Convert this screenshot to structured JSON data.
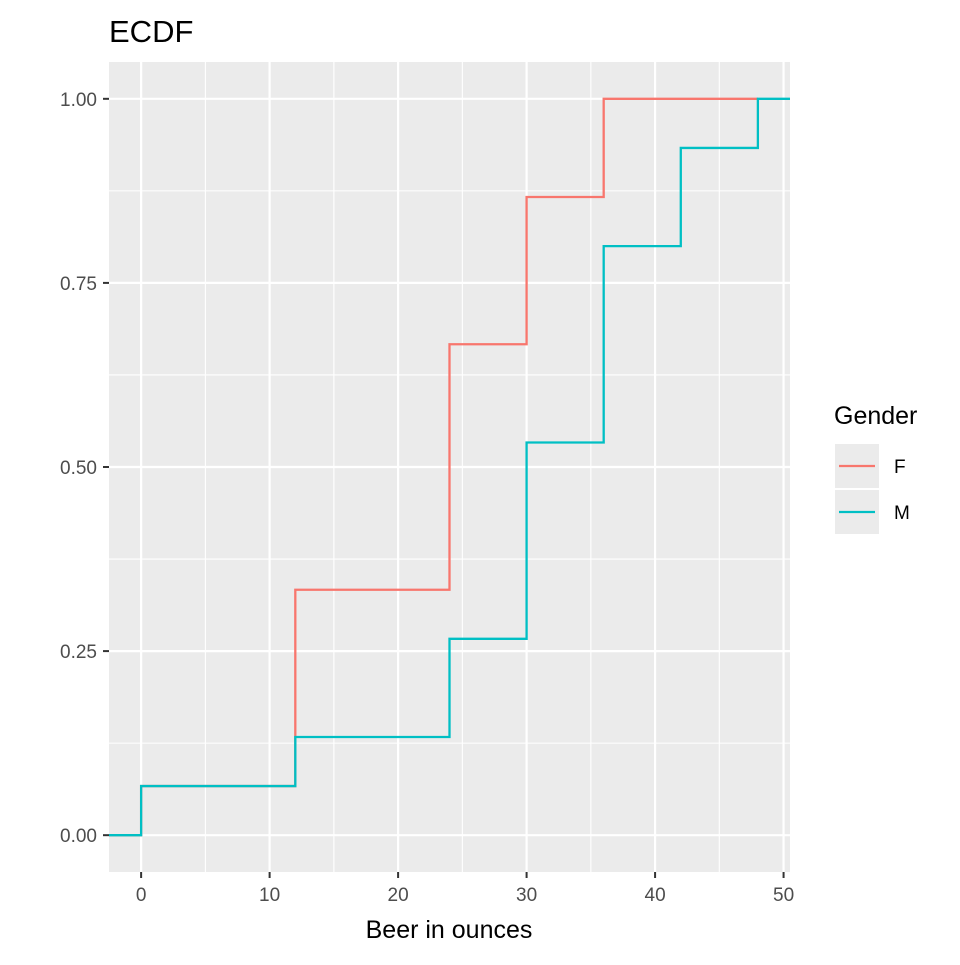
{
  "chart_data": {
    "type": "line",
    "step": true,
    "title": "ECDF",
    "xlabel": "Beer in ounces",
    "ylabel": "",
    "xlim": [
      -2.5,
      50.5
    ],
    "ylim": [
      -0.05,
      1.05
    ],
    "x_ticks": [
      0,
      10,
      20,
      30,
      40,
      50
    ],
    "x_tick_labels": [
      "0",
      "10",
      "20",
      "30",
      "40",
      "50"
    ],
    "y_ticks": [
      0,
      0.25,
      0.5,
      0.75,
      1.0
    ],
    "y_tick_labels": [
      "0.00",
      "0.25",
      "0.50",
      "0.75",
      "1.00"
    ],
    "grid": true,
    "legend": {
      "title": "Gender",
      "position": "right"
    },
    "series": [
      {
        "name": "F",
        "color": "#F8766D",
        "points": [
          [
            -2.5,
            0
          ],
          [
            0,
            0.0667
          ],
          [
            12,
            0.3333
          ],
          [
            24,
            0.6667
          ],
          [
            30,
            0.8667
          ],
          [
            36,
            1.0
          ],
          [
            48,
            1.0
          ]
        ]
      },
      {
        "name": "M",
        "color": "#00BFC4",
        "points": [
          [
            -2.5,
            0
          ],
          [
            0,
            0.0667
          ],
          [
            12,
            0.1333
          ],
          [
            24,
            0.2667
          ],
          [
            30,
            0.5333
          ],
          [
            36,
            0.8
          ],
          [
            42,
            0.9333
          ],
          [
            48,
            1.0
          ],
          [
            50.5,
            1.0
          ]
        ]
      }
    ]
  }
}
